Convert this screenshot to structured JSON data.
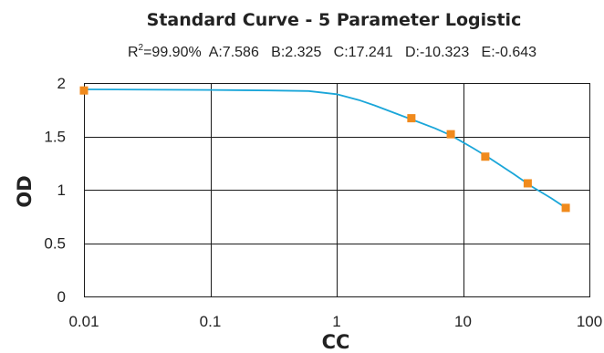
{
  "chart_data": {
    "type": "scatter",
    "title": "Standard Curve - 5 Parameter Logistic",
    "subtitle": {
      "r2_label": "R",
      "r2_sup": "2",
      "r2_value": "=99.90%",
      "params": "A:7.586   B:2.325   C:17.241   D:-10.323   E:-0.643"
    },
    "xlabel": "CC",
    "ylabel": "OD",
    "x_scale": "log",
    "xlim": [
      0.01,
      100
    ],
    "ylim": [
      0,
      2
    ],
    "x_ticks": [
      {
        "value": 0.01,
        "label": "0.01"
      },
      {
        "value": 0.1,
        "label": "0.1"
      },
      {
        "value": 1,
        "label": "1"
      },
      {
        "value": 10,
        "label": "10"
      },
      {
        "value": 100,
        "label": "100"
      }
    ],
    "y_ticks": [
      {
        "value": 0,
        "label": "0"
      },
      {
        "value": 0.5,
        "label": "0.5"
      },
      {
        "value": 1,
        "label": "1"
      },
      {
        "value": 1.5,
        "label": "1.5"
      },
      {
        "value": 2,
        "label": "2"
      }
    ],
    "grid": true,
    "series": [
      {
        "type": "scatter",
        "color": "#f08a1c",
        "points": [
          {
            "x": 0.01,
            "y": 1.93
          },
          {
            "x": 3.9,
            "y": 1.67
          },
          {
            "x": 8.0,
            "y": 1.52
          },
          {
            "x": 15.0,
            "y": 1.31
          },
          {
            "x": 32.5,
            "y": 1.06
          },
          {
            "x": 65.0,
            "y": 0.83
          }
        ]
      },
      {
        "type": "line",
        "color": "#1aa6d9",
        "points": [
          {
            "x": 0.01,
            "y": 1.94
          },
          {
            "x": 0.1,
            "y": 1.935
          },
          {
            "x": 0.3,
            "y": 1.93
          },
          {
            "x": 0.6,
            "y": 1.925
          },
          {
            "x": 1.0,
            "y": 1.895
          },
          {
            "x": 1.5,
            "y": 1.84
          },
          {
            "x": 2.0,
            "y": 1.79
          },
          {
            "x": 3.0,
            "y": 1.71
          },
          {
            "x": 4.0,
            "y": 1.655
          },
          {
            "x": 6.0,
            "y": 1.575
          },
          {
            "x": 8.0,
            "y": 1.51
          },
          {
            "x": 12.0,
            "y": 1.39
          },
          {
            "x": 16.0,
            "y": 1.3
          },
          {
            "x": 25.0,
            "y": 1.15
          },
          {
            "x": 35.0,
            "y": 1.03
          },
          {
            "x": 50.0,
            "y": 0.92
          },
          {
            "x": 65.0,
            "y": 0.83
          }
        ]
      }
    ]
  }
}
